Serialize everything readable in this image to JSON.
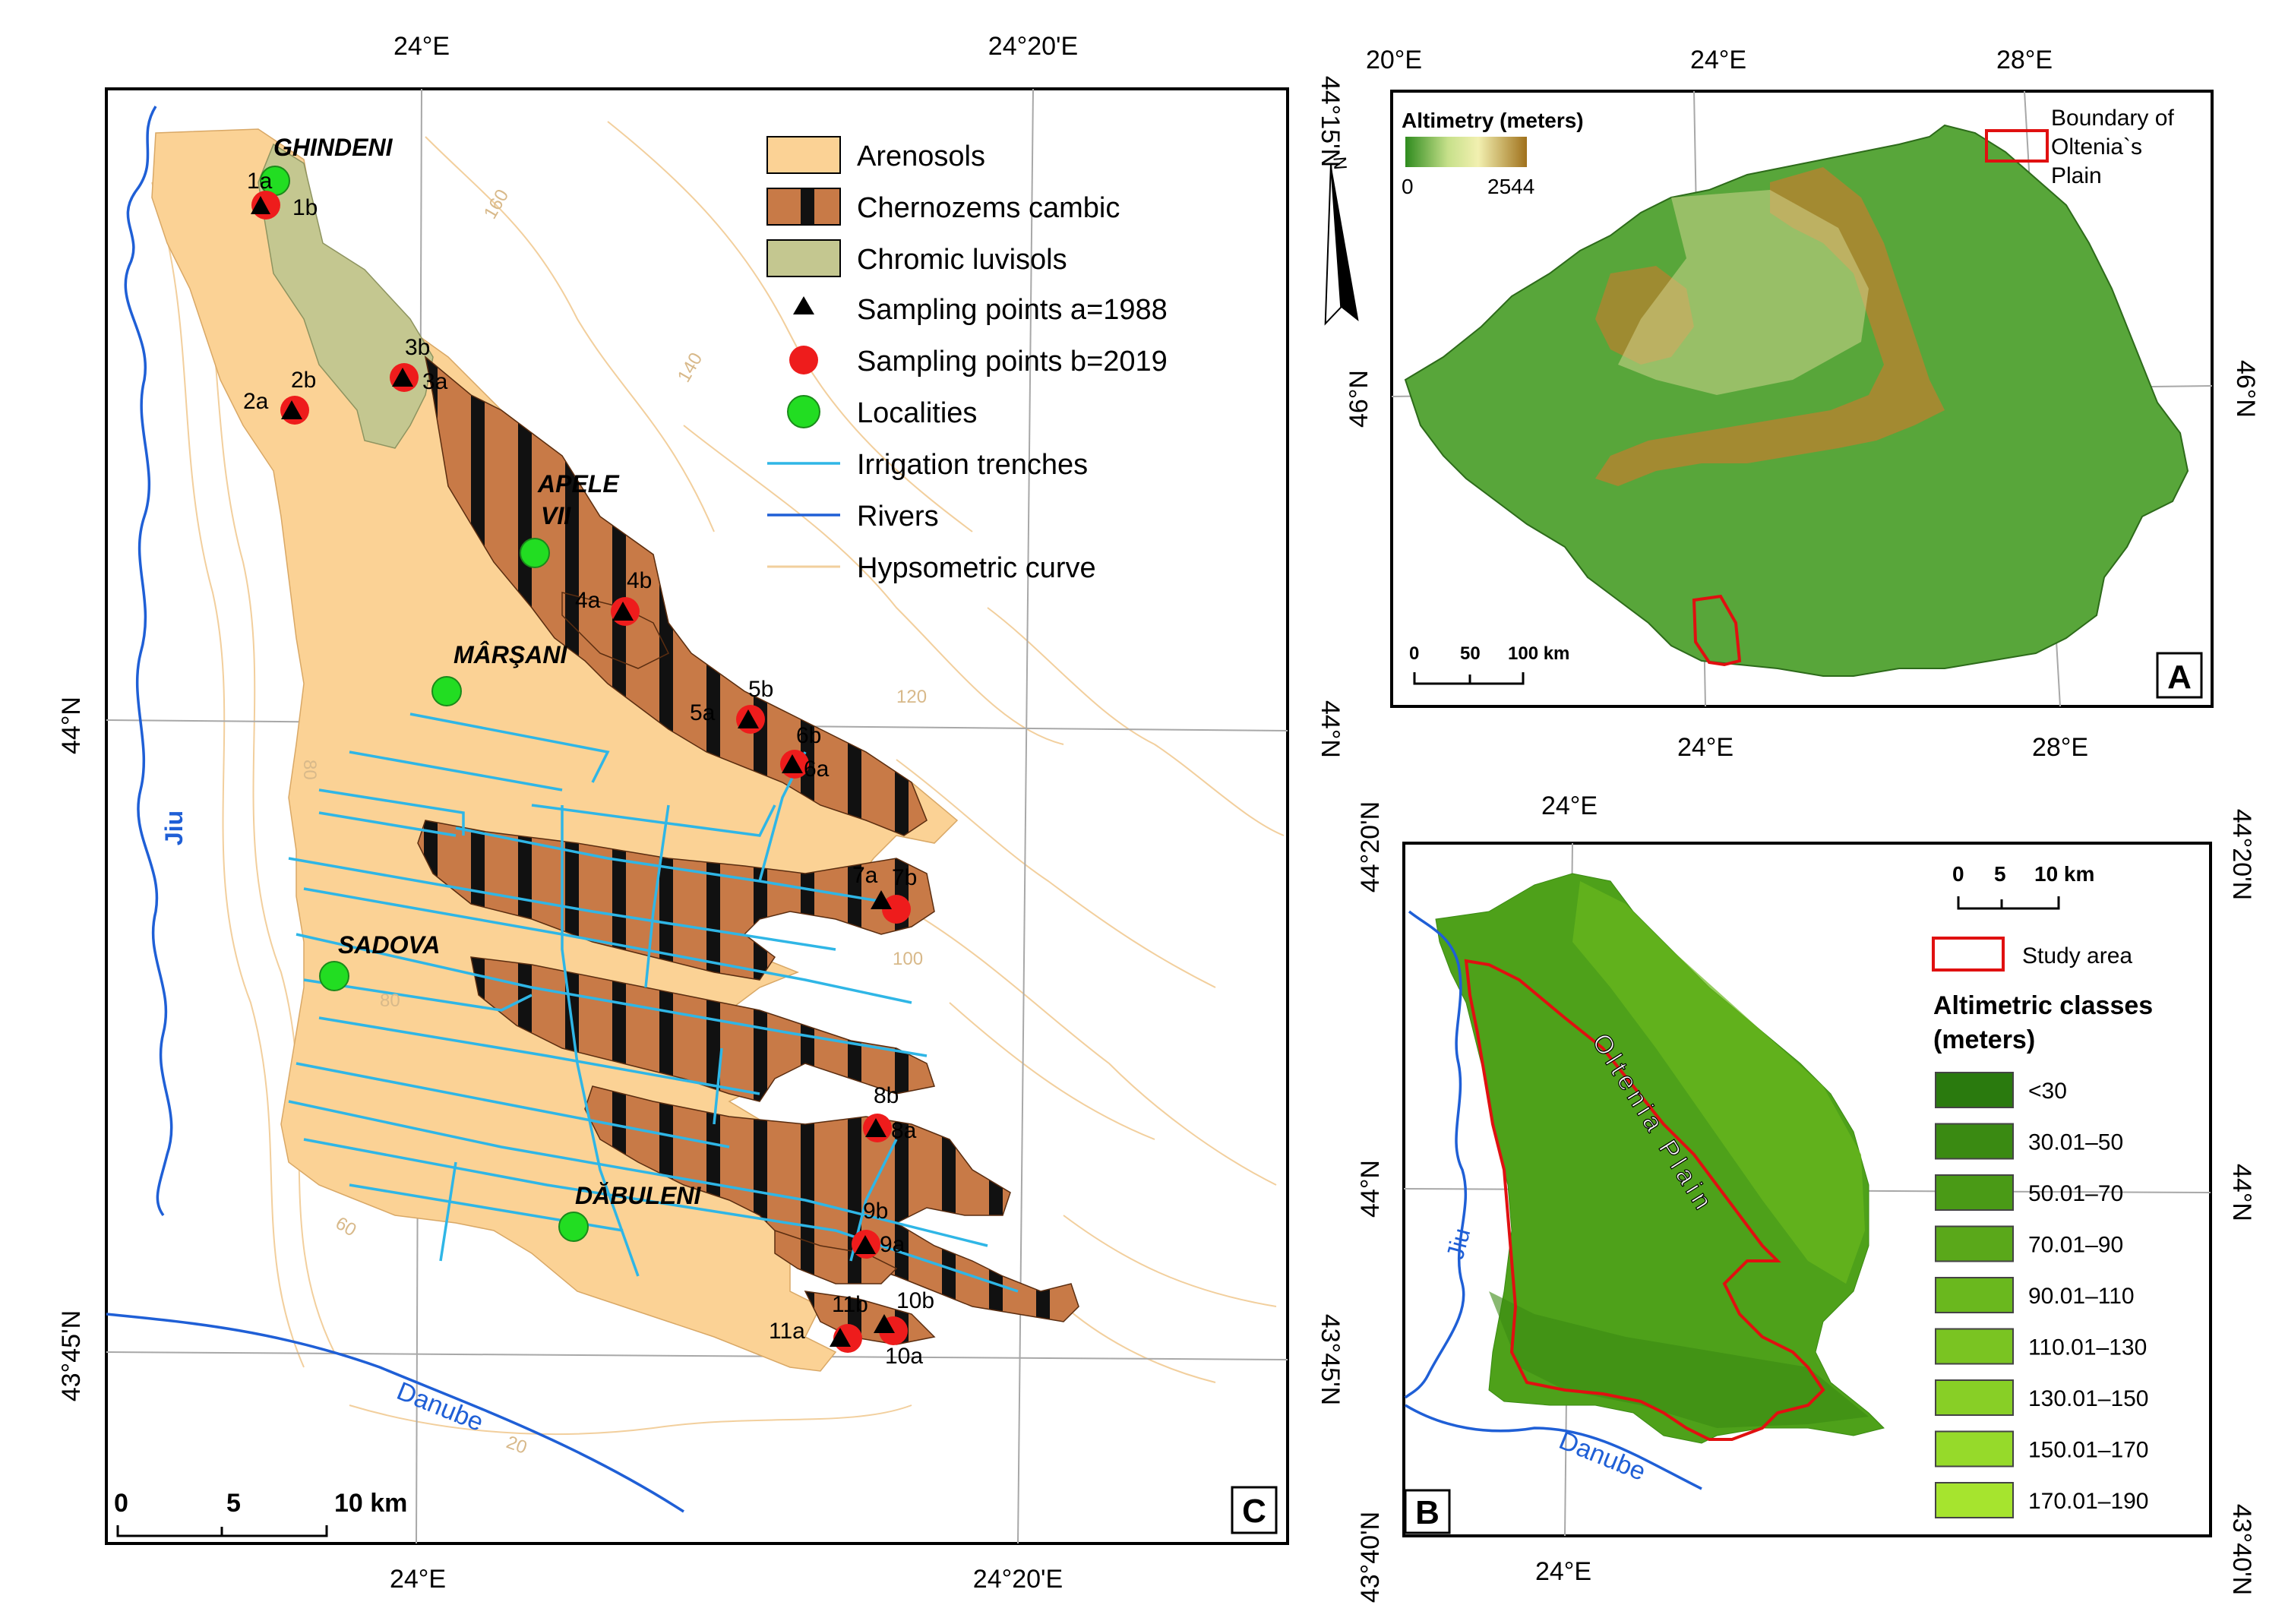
{
  "panel_c": {
    "label": "C",
    "coords": {
      "top_left": "24°E",
      "top_right": "24°20'E",
      "bottom_left": "24°E",
      "bottom_right": "24°20'E",
      "left_mid": "44°N",
      "left_bottom": "43°45'N",
      "right_top": "44°15'N",
      "right_mid": "44°N",
      "right_bottom": "43°45'N"
    },
    "north": "N",
    "localities": [
      "GHINDENI",
      "APELE",
      "VII",
      "MÂRŞANI",
      "SADOVA",
      "DĂBULENI"
    ],
    "rivers": [
      "Jiu",
      "Danube"
    ],
    "contour_labels": [
      "160",
      "140",
      "120",
      "100",
      "80",
      "80",
      "60",
      "20"
    ],
    "points": [
      "1a",
      "1b",
      "2a",
      "2b",
      "3b",
      "3a",
      "4a",
      "4b",
      "5b",
      "5a",
      "6b",
      "6a",
      "7a",
      "7b",
      "8b",
      "8a",
      "9b",
      "9a",
      "11b",
      "10b",
      "11a",
      "10a"
    ],
    "scale": {
      "ticks": [
        "0",
        "5",
        "10 km"
      ]
    },
    "legend": [
      {
        "label": "Arenosols",
        "color": "#fbd295"
      },
      {
        "label": "Chernozems cambic",
        "color": "#c87a47"
      },
      {
        "label": "Chromic luvisols",
        "color": "#c4c790"
      },
      {
        "label": "Sampling points a=1988"
      },
      {
        "label": "Sampling points b=2019"
      },
      {
        "label": "Localities"
      },
      {
        "label": "Irrigation trenches"
      },
      {
        "label": "Rivers"
      },
      {
        "label": "Hypsometric curve"
      }
    ]
  },
  "panel_a": {
    "label": "A",
    "coords": {
      "top1": "20°E",
      "top2": "24°E",
      "top3": "28°E",
      "left": "46°N",
      "right": "46°N",
      "bottom1": "24°E",
      "bottom2": "28°E"
    },
    "altimetry_title": "Altimetry (meters)",
    "alt_min": "0",
    "alt_max": "2544",
    "boundary_label_lines": [
      "Boundary of",
      "Oltenia`s",
      "Plain"
    ],
    "scale": [
      "0",
      "50",
      "100 km"
    ]
  },
  "panel_b": {
    "label": "B",
    "coords": {
      "top": "24°E",
      "bottom": "24°E",
      "left_top": "44°20'N",
      "left_mid": "44°N",
      "left_bottom": "43°40'N",
      "right_top": "44°20'N",
      "right_mid": "44°N",
      "right_bottom": "43°40'N"
    },
    "scale": [
      "0",
      "5",
      "10 km"
    ],
    "study_area": "Study area",
    "classes_title_lines": [
      "Altimetric classes",
      "(meters)"
    ],
    "plain_label": "Oltenia Plain",
    "rivers": [
      "Jiu",
      "Danube"
    ],
    "classes": [
      {
        "label": "<30",
        "color": "#2a7a0e"
      },
      {
        "label": "30.01–50",
        "color": "#3a8a12"
      },
      {
        "label": "50.01–70",
        "color": "#4a9a16"
      },
      {
        "label": "70.01–90",
        "color": "#5aa81a"
      },
      {
        "label": "90.01–110",
        "color": "#6ab81e"
      },
      {
        "label": "110.01–130",
        "color": "#7ac422"
      },
      {
        "label": "130.01–150",
        "color": "#88cf26"
      },
      {
        "label": "150.01–170",
        "color": "#96da2a"
      },
      {
        "label": "170.01–190",
        "color": "#a6e42e"
      }
    ]
  }
}
